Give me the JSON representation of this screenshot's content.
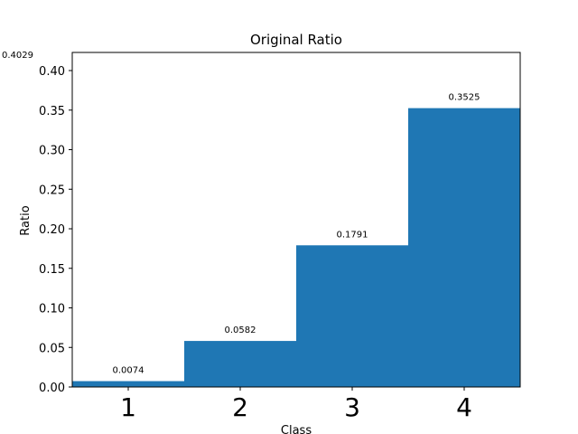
{
  "chart_data": {
    "type": "bar",
    "title": "Original Ratio",
    "xlabel": "Class",
    "ylabel": "Ratio",
    "categories": [
      "1",
      "2",
      "3",
      "4"
    ],
    "values": [
      0.0074,
      0.0582,
      0.1791,
      0.3525
    ],
    "bar_labels": [
      "0.0074",
      "0.0582",
      "0.1791",
      "0.3525"
    ],
    "ylim": [
      0,
      0.4229
    ],
    "yticks": [
      0.0,
      0.05,
      0.1,
      0.15,
      0.2,
      0.25,
      0.3,
      0.35,
      0.4
    ],
    "ytick_labels": [
      "0.00",
      "0.05",
      "0.10",
      "0.15",
      "0.20",
      "0.25",
      "0.30",
      "0.35",
      "0.40"
    ],
    "corner_note": "0.4029",
    "grid": false,
    "bar_color": "#1f77b4"
  }
}
